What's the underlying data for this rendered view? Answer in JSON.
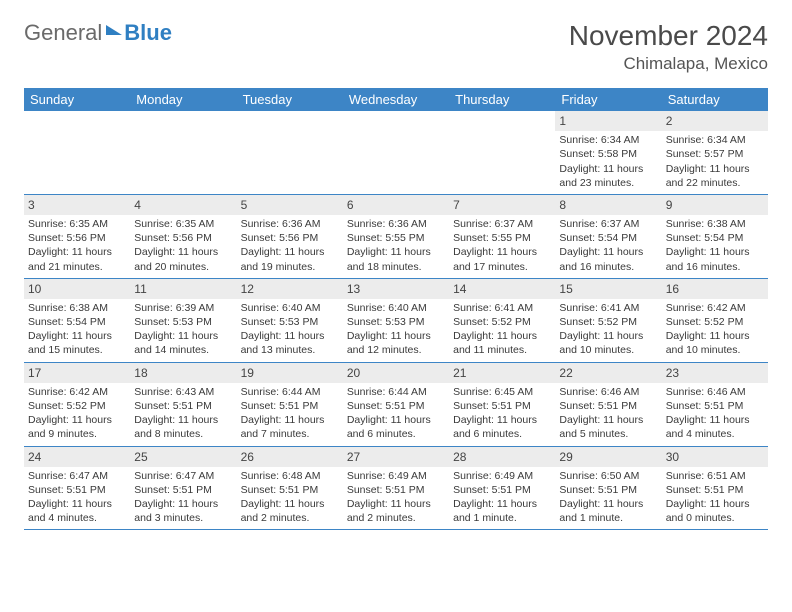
{
  "logo": {
    "part1": "General",
    "part2": "Blue"
  },
  "title": {
    "month": "November 2024",
    "location": "Chimalapa, Mexico"
  },
  "colors": {
    "header_bg": "#3d85c6",
    "header_text": "#ffffff",
    "daynum_bg": "#ececec",
    "border": "#3d85c6",
    "text": "#3a3a3a",
    "logo_gray": "#6a6a6a",
    "logo_blue": "#2f7fc2"
  },
  "weekdays": [
    "Sunday",
    "Monday",
    "Tuesday",
    "Wednesday",
    "Thursday",
    "Friday",
    "Saturday"
  ],
  "weeks": [
    [
      {
        "n": "",
        "sr": "",
        "ss": "",
        "dl": ""
      },
      {
        "n": "",
        "sr": "",
        "ss": "",
        "dl": ""
      },
      {
        "n": "",
        "sr": "",
        "ss": "",
        "dl": ""
      },
      {
        "n": "",
        "sr": "",
        "ss": "",
        "dl": ""
      },
      {
        "n": "",
        "sr": "",
        "ss": "",
        "dl": ""
      },
      {
        "n": "1",
        "sr": "Sunrise: 6:34 AM",
        "ss": "Sunset: 5:58 PM",
        "dl": "Daylight: 11 hours and 23 minutes."
      },
      {
        "n": "2",
        "sr": "Sunrise: 6:34 AM",
        "ss": "Sunset: 5:57 PM",
        "dl": "Daylight: 11 hours and 22 minutes."
      }
    ],
    [
      {
        "n": "3",
        "sr": "Sunrise: 6:35 AM",
        "ss": "Sunset: 5:56 PM",
        "dl": "Daylight: 11 hours and 21 minutes."
      },
      {
        "n": "4",
        "sr": "Sunrise: 6:35 AM",
        "ss": "Sunset: 5:56 PM",
        "dl": "Daylight: 11 hours and 20 minutes."
      },
      {
        "n": "5",
        "sr": "Sunrise: 6:36 AM",
        "ss": "Sunset: 5:56 PM",
        "dl": "Daylight: 11 hours and 19 minutes."
      },
      {
        "n": "6",
        "sr": "Sunrise: 6:36 AM",
        "ss": "Sunset: 5:55 PM",
        "dl": "Daylight: 11 hours and 18 minutes."
      },
      {
        "n": "7",
        "sr": "Sunrise: 6:37 AM",
        "ss": "Sunset: 5:55 PM",
        "dl": "Daylight: 11 hours and 17 minutes."
      },
      {
        "n": "8",
        "sr": "Sunrise: 6:37 AM",
        "ss": "Sunset: 5:54 PM",
        "dl": "Daylight: 11 hours and 16 minutes."
      },
      {
        "n": "9",
        "sr": "Sunrise: 6:38 AM",
        "ss": "Sunset: 5:54 PM",
        "dl": "Daylight: 11 hours and 16 minutes."
      }
    ],
    [
      {
        "n": "10",
        "sr": "Sunrise: 6:38 AM",
        "ss": "Sunset: 5:54 PM",
        "dl": "Daylight: 11 hours and 15 minutes."
      },
      {
        "n": "11",
        "sr": "Sunrise: 6:39 AM",
        "ss": "Sunset: 5:53 PM",
        "dl": "Daylight: 11 hours and 14 minutes."
      },
      {
        "n": "12",
        "sr": "Sunrise: 6:40 AM",
        "ss": "Sunset: 5:53 PM",
        "dl": "Daylight: 11 hours and 13 minutes."
      },
      {
        "n": "13",
        "sr": "Sunrise: 6:40 AM",
        "ss": "Sunset: 5:53 PM",
        "dl": "Daylight: 11 hours and 12 minutes."
      },
      {
        "n": "14",
        "sr": "Sunrise: 6:41 AM",
        "ss": "Sunset: 5:52 PM",
        "dl": "Daylight: 11 hours and 11 minutes."
      },
      {
        "n": "15",
        "sr": "Sunrise: 6:41 AM",
        "ss": "Sunset: 5:52 PM",
        "dl": "Daylight: 11 hours and 10 minutes."
      },
      {
        "n": "16",
        "sr": "Sunrise: 6:42 AM",
        "ss": "Sunset: 5:52 PM",
        "dl": "Daylight: 11 hours and 10 minutes."
      }
    ],
    [
      {
        "n": "17",
        "sr": "Sunrise: 6:42 AM",
        "ss": "Sunset: 5:52 PM",
        "dl": "Daylight: 11 hours and 9 minutes."
      },
      {
        "n": "18",
        "sr": "Sunrise: 6:43 AM",
        "ss": "Sunset: 5:51 PM",
        "dl": "Daylight: 11 hours and 8 minutes."
      },
      {
        "n": "19",
        "sr": "Sunrise: 6:44 AM",
        "ss": "Sunset: 5:51 PM",
        "dl": "Daylight: 11 hours and 7 minutes."
      },
      {
        "n": "20",
        "sr": "Sunrise: 6:44 AM",
        "ss": "Sunset: 5:51 PM",
        "dl": "Daylight: 11 hours and 6 minutes."
      },
      {
        "n": "21",
        "sr": "Sunrise: 6:45 AM",
        "ss": "Sunset: 5:51 PM",
        "dl": "Daylight: 11 hours and 6 minutes."
      },
      {
        "n": "22",
        "sr": "Sunrise: 6:46 AM",
        "ss": "Sunset: 5:51 PM",
        "dl": "Daylight: 11 hours and 5 minutes."
      },
      {
        "n": "23",
        "sr": "Sunrise: 6:46 AM",
        "ss": "Sunset: 5:51 PM",
        "dl": "Daylight: 11 hours and 4 minutes."
      }
    ],
    [
      {
        "n": "24",
        "sr": "Sunrise: 6:47 AM",
        "ss": "Sunset: 5:51 PM",
        "dl": "Daylight: 11 hours and 4 minutes."
      },
      {
        "n": "25",
        "sr": "Sunrise: 6:47 AM",
        "ss": "Sunset: 5:51 PM",
        "dl": "Daylight: 11 hours and 3 minutes."
      },
      {
        "n": "26",
        "sr": "Sunrise: 6:48 AM",
        "ss": "Sunset: 5:51 PM",
        "dl": "Daylight: 11 hours and 2 minutes."
      },
      {
        "n": "27",
        "sr": "Sunrise: 6:49 AM",
        "ss": "Sunset: 5:51 PM",
        "dl": "Daylight: 11 hours and 2 minutes."
      },
      {
        "n": "28",
        "sr": "Sunrise: 6:49 AM",
        "ss": "Sunset: 5:51 PM",
        "dl": "Daylight: 11 hours and 1 minute."
      },
      {
        "n": "29",
        "sr": "Sunrise: 6:50 AM",
        "ss": "Sunset: 5:51 PM",
        "dl": "Daylight: 11 hours and 1 minute."
      },
      {
        "n": "30",
        "sr": "Sunrise: 6:51 AM",
        "ss": "Sunset: 5:51 PM",
        "dl": "Daylight: 11 hours and 0 minutes."
      }
    ]
  ]
}
